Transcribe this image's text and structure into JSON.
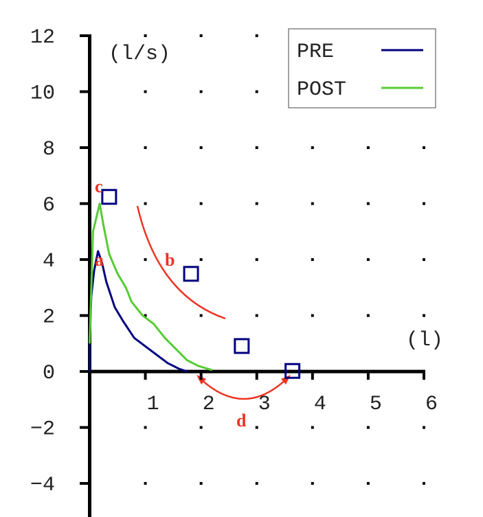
{
  "chart_data": {
    "type": "line",
    "y_label": "(l/s)",
    "x_label": "(l)",
    "xlim": [
      0,
      6
    ],
    "ylim": [
      -5.2,
      12
    ],
    "xticks": [
      1,
      2,
      3,
      4,
      5,
      6
    ],
    "yticks": [
      {
        "value": -4,
        "label": "−4"
      },
      {
        "value": -2,
        "label": "−2"
      },
      0,
      2,
      4,
      6,
      8,
      10,
      12
    ],
    "grid": true,
    "legend": "top-right",
    "series": [
      {
        "name": "PRE",
        "color": "#00007f",
        "x": [
          0,
          0,
          0.03,
          0.08,
          0.15,
          0.22,
          0.3,
          0.45,
          0.6,
          0.8,
          1.0,
          1.2,
          1.4,
          1.6,
          1.75
        ],
        "values": [
          0,
          1,
          2.7,
          3.6,
          4.3,
          3.9,
          3.2,
          2.3,
          1.8,
          1.2,
          0.9,
          0.6,
          0.3,
          0.1,
          0
        ]
      },
      {
        "name": "POST",
        "color": "#55cc33",
        "x": [
          0,
          0.06,
          0.18,
          0.25,
          0.35,
          0.5,
          0.65,
          0.75,
          0.95,
          1.15,
          1.35,
          1.55,
          1.75,
          1.95,
          2.2
        ],
        "values": [
          1,
          5,
          6,
          5.2,
          4.2,
          3.5,
          3.0,
          2.5,
          2.0,
          1.7,
          1.2,
          0.8,
          0.4,
          0.2,
          0.05
        ]
      }
    ],
    "markers": {
      "color": "#00007f",
      "x": [
        0.35,
        1.82,
        2.73,
        3.64
      ],
      "values": [
        6.24,
        3.49,
        0.91,
        0.02
      ]
    },
    "annotations": [
      "a",
      "b",
      "c",
      "d"
    ]
  }
}
